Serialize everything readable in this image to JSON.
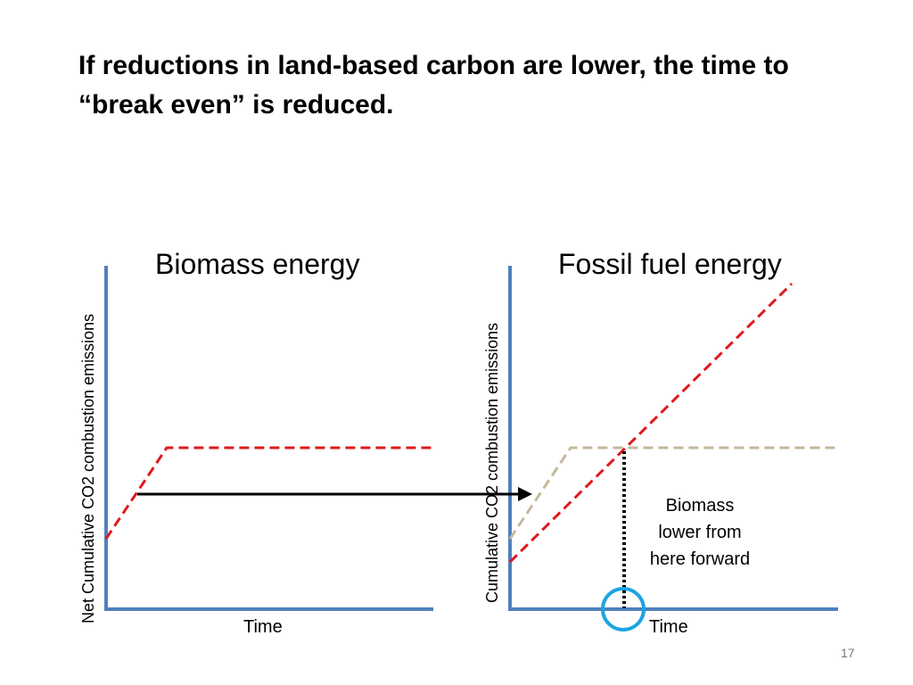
{
  "slide": {
    "title": "If reductions in land-based carbon are lower, the time to “break even” is reduced.",
    "page_number": "17",
    "colors": {
      "axis": "#4f81bd",
      "red_dashed": "#e0191b",
      "tan_dashed": "#c4b89a",
      "arrow": "#000000",
      "circle": "#1ea3e3",
      "dotted": "#000000"
    }
  },
  "left_panel": {
    "title": "Biomass energy",
    "ylabel": "Net Cumulative CO2 combustion emissions",
    "xlabel": "Time"
  },
  "right_panel": {
    "title": "Fossil fuel energy",
    "ylabel": "Cumulative CO2 combustion emissions",
    "xlabel": "Time",
    "note": [
      "Biomass",
      "lower from",
      "here forward"
    ]
  }
}
